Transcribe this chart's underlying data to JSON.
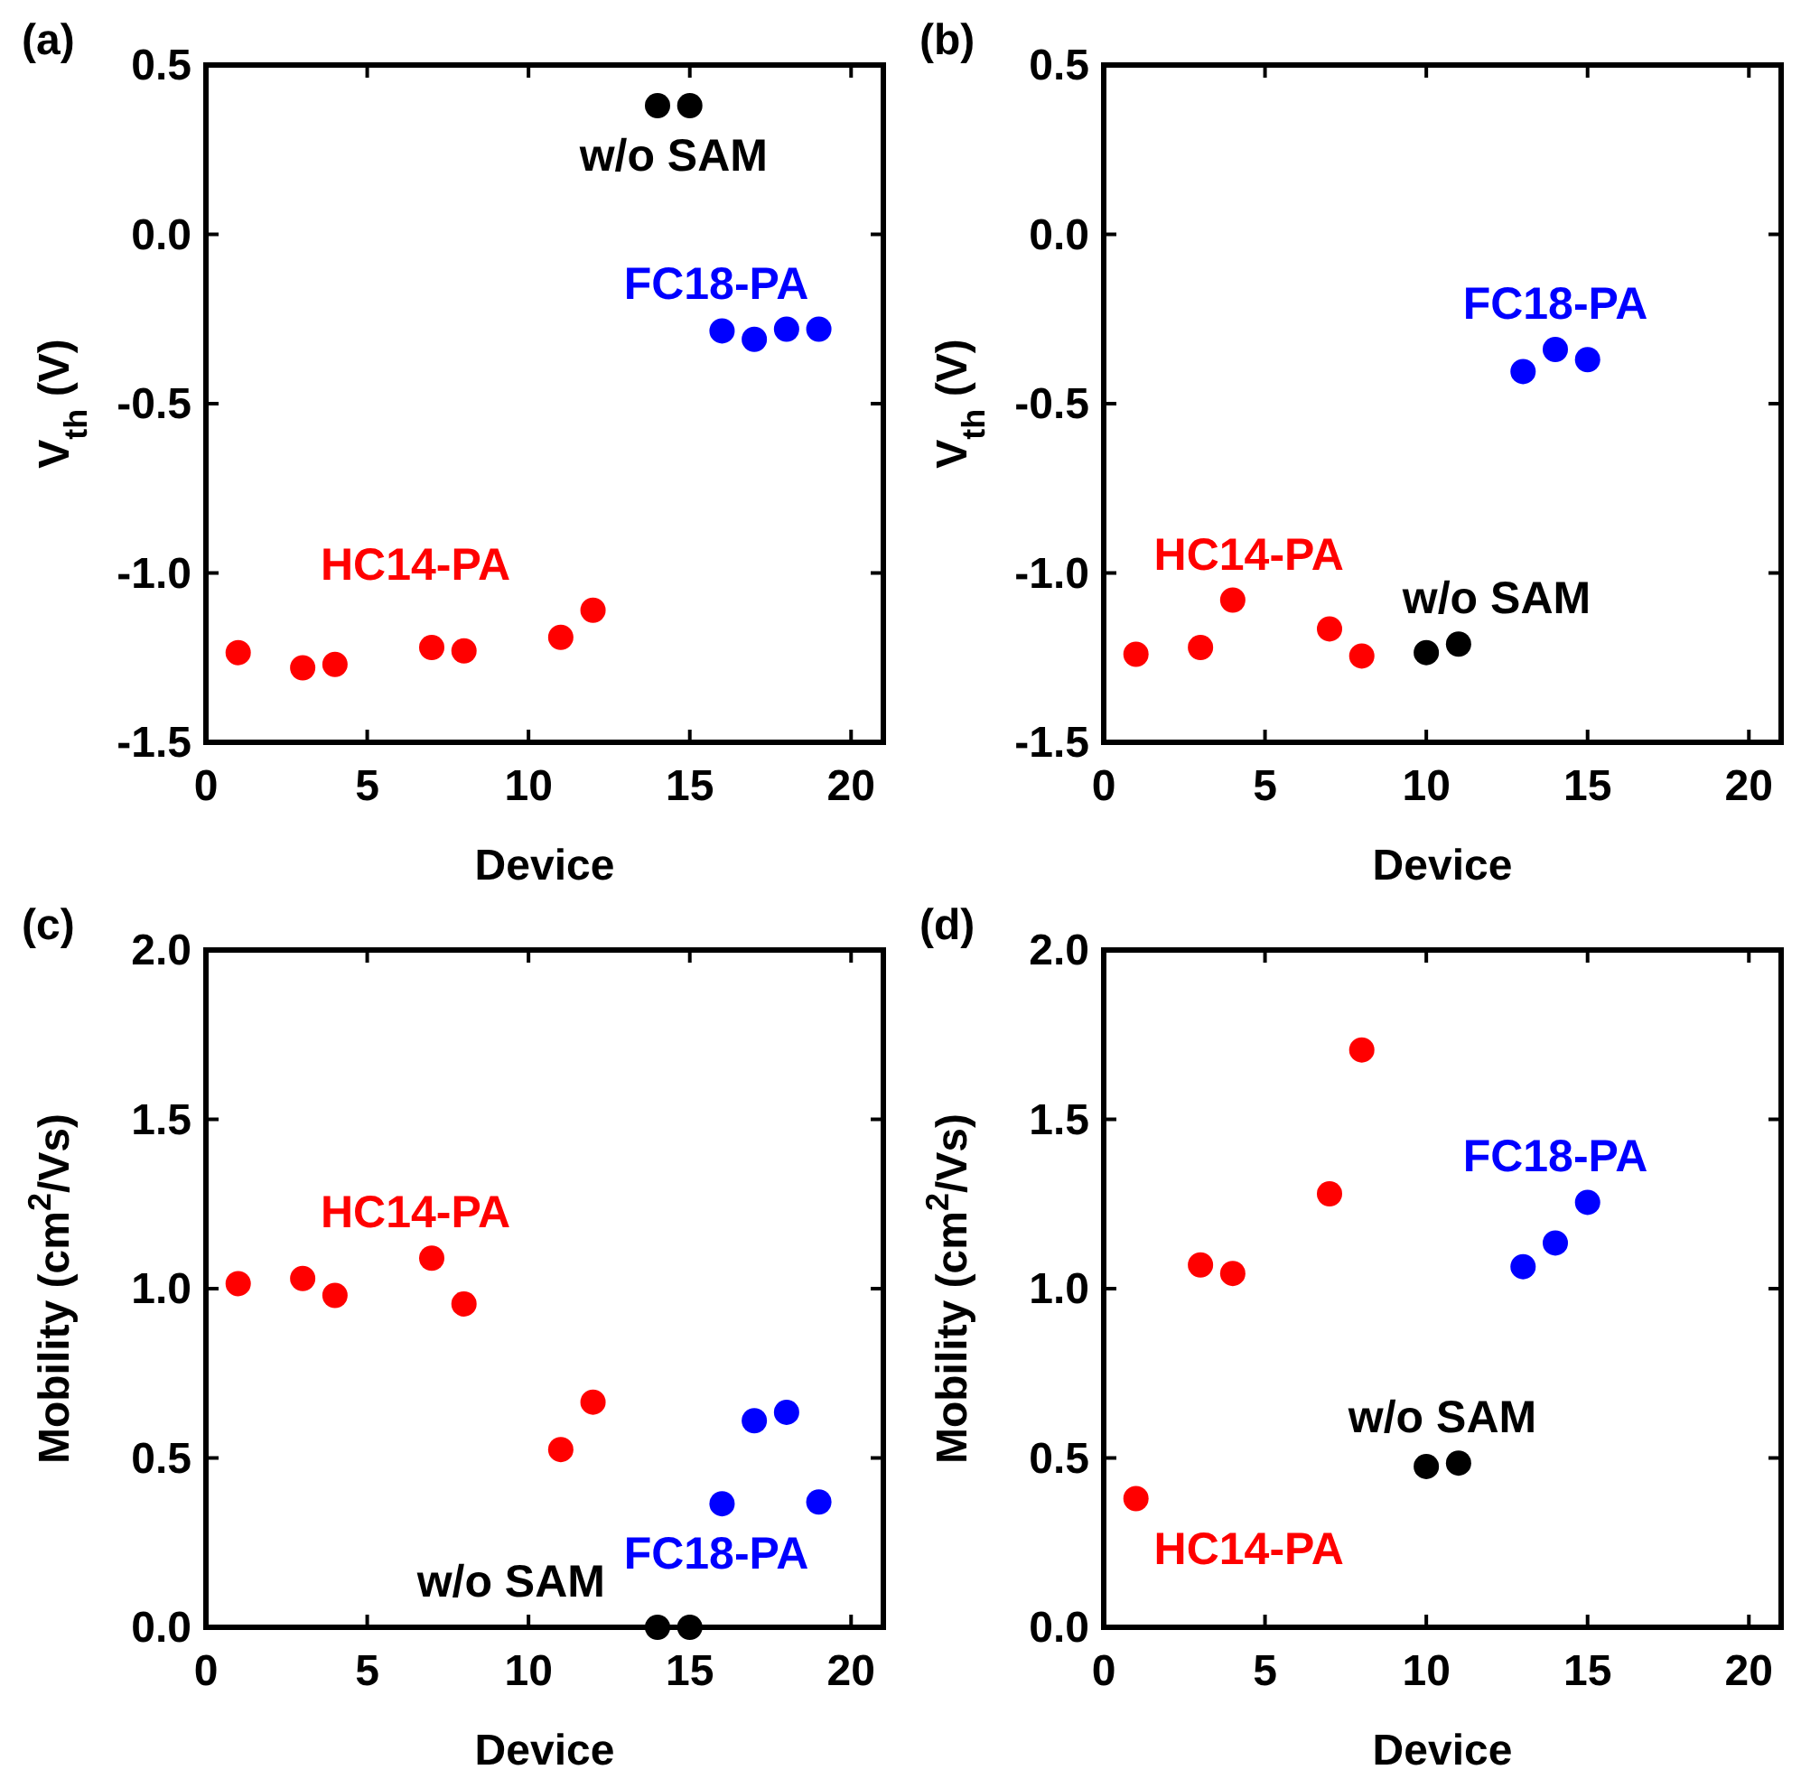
{
  "chart_data": [
    {
      "type": "scatter",
      "title": "(a)",
      "xlabel": "Device",
      "ylabel": "V$_{th}$ (V)",
      "xlim": [
        0,
        21
      ],
      "xticks": [
        0,
        5,
        10,
        15,
        20
      ],
      "ylim": [
        -1.5,
        0.5
      ],
      "yticks": [
        {
          "value": -1.5,
          "label": "-1.5"
        },
        {
          "value": -1,
          "label": "-1.0"
        },
        {
          "value": -0.5,
          "label": "-0.5"
        },
        {
          "value": 0,
          "label": "0.0"
        },
        {
          "value": 0.5,
          "label": "0.5"
        }
      ],
      "marker": "circle",
      "series": [
        {
          "name": "HC14-PA",
          "color": "#ff0000",
          "x": [
            1,
            3,
            4,
            7,
            8,
            11,
            12
          ],
          "values": [
            -1.235,
            -1.28,
            -1.27,
            -1.22,
            -1.23,
            -1.19,
            -1.11
          ]
        },
        {
          "name": "FC18-PA",
          "color": "#0000ff",
          "x": [
            16,
            17,
            18,
            19
          ],
          "values": [
            -0.285,
            -0.31,
            -0.28,
            -0.28
          ]
        },
        {
          "name": "w/o SAM",
          "color": "#000000",
          "x": [
            14,
            15
          ],
          "values": [
            0.38,
            0.38
          ]
        }
      ]
    },
    {
      "type": "scatter",
      "title": "(b)",
      "xlabel": "Device",
      "ylabel": "V$_{th}$ (V)",
      "xlim": [
        0,
        21
      ],
      "xticks": [
        0,
        5,
        10,
        15,
        20
      ],
      "ylim": [
        -1.5,
        0.5
      ],
      "yticks": [
        {
          "value": -1.5,
          "label": "-1.5"
        },
        {
          "value": -1,
          "label": "-1.0"
        },
        {
          "value": -0.5,
          "label": "-0.5"
        },
        {
          "value": 0,
          "label": "0.0"
        },
        {
          "value": 0.5,
          "label": "0.5"
        }
      ],
      "marker": "circle",
      "series": [
        {
          "name": "HC14-PA",
          "color": "#ff0000",
          "x": [
            1,
            3,
            4,
            7,
            8
          ],
          "values": [
            -1.24,
            -1.22,
            -1.08,
            -1.165,
            -1.245
          ]
        },
        {
          "name": "w/o SAM",
          "color": "#000000",
          "x": [
            10,
            11
          ],
          "values": [
            -1.235,
            -1.21
          ]
        },
        {
          "name": "FC18-PA",
          "color": "#0000ff",
          "x": [
            13,
            14,
            15
          ],
          "values": [
            -0.405,
            -0.34,
            -0.37
          ]
        }
      ]
    },
    {
      "type": "scatter",
      "title": "(c)",
      "xlabel": "Device",
      "ylabel": "Mobility (cm$^{2}$/Vs)",
      "xlim": [
        0,
        21
      ],
      "xticks": [
        0,
        5,
        10,
        15,
        20
      ],
      "ylim": [
        0,
        2
      ],
      "yticks": [
        {
          "value": 0,
          "label": "0.0"
        },
        {
          "value": 0.5,
          "label": "0.5"
        },
        {
          "value": 1,
          "label": "1.0"
        },
        {
          "value": 1.5,
          "label": "1.5"
        },
        {
          "value": 2,
          "label": "2.0"
        }
      ],
      "marker": "circle",
      "series": [
        {
          "name": "HC14-PA",
          "color": "#ff0000",
          "x": [
            1,
            3,
            4,
            7,
            8,
            11,
            12
          ],
          "values": [
            1.015,
            1.03,
            0.98,
            1.09,
            0.955,
            0.525,
            0.665
          ]
        },
        {
          "name": "FC18-PA",
          "color": "#0000ff",
          "x": [
            16,
            17,
            18,
            19
          ],
          "values": [
            0.365,
            0.61,
            0.635,
            0.37
          ]
        },
        {
          "name": "w/o SAM",
          "color": "#000000",
          "x": [
            14,
            15
          ],
          "values": [
            0,
            0
          ]
        }
      ]
    },
    {
      "type": "scatter",
      "title": "(d)",
      "xlabel": "Device",
      "ylabel": "Mobility (cm$^{2}$/Vs)",
      "xlim": [
        0,
        21
      ],
      "xticks": [
        0,
        5,
        10,
        15,
        20
      ],
      "ylim": [
        0,
        2
      ],
      "yticks": [
        {
          "value": 0,
          "label": "0.0"
        },
        {
          "value": 0.5,
          "label": "0.5"
        },
        {
          "value": 1,
          "label": "1.0"
        },
        {
          "value": 1.5,
          "label": "1.5"
        },
        {
          "value": 2,
          "label": "2.0"
        }
      ],
      "marker": "circle",
      "series": [
        {
          "name": "HC14-PA",
          "color": "#ff0000",
          "x": [
            1,
            3,
            4,
            7,
            8
          ],
          "values": [
            0.38,
            1.07,
            1.045,
            1.28,
            1.705
          ]
        },
        {
          "name": "w/o SAM",
          "color": "#000000",
          "x": [
            10,
            11
          ],
          "values": [
            0.475,
            0.485
          ]
        },
        {
          "name": "FC18-PA",
          "color": "#0000ff",
          "x": [
            13,
            14,
            15
          ],
          "values": [
            1.065,
            1.135,
            1.255
          ]
        }
      ]
    }
  ]
}
